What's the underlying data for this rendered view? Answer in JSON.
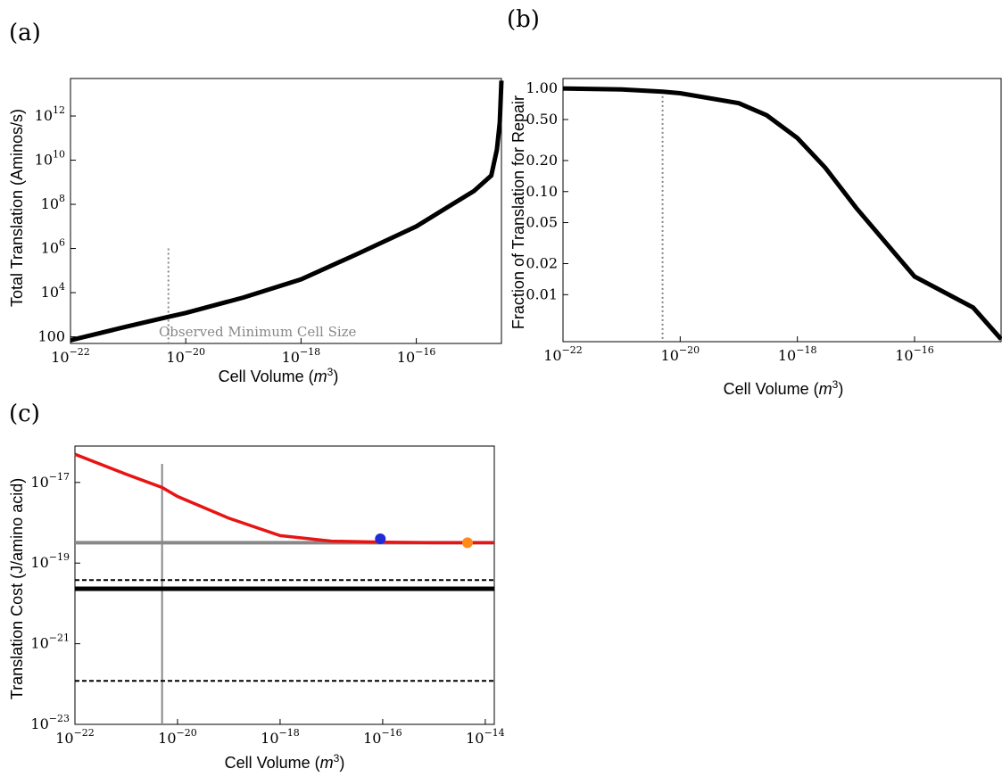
{
  "panel_labels": [
    "(a)",
    "(b)",
    "(c)"
  ],
  "colors": {
    "curve": "#000000",
    "dotted": "#888888",
    "red_curve": "#e81414",
    "gray_line": "#888888",
    "blue_point": "#1f2bd6",
    "orange_point": "#ff8a1a",
    "black_line": "#000000",
    "dashed": "#000000"
  },
  "chart_data": [
    {
      "type": "line",
      "panel": "(a)",
      "xlabel": "Cell Volume (m^3)",
      "ylabel": "Total Translation (Aminos/s)",
      "xscale": "log",
      "yscale": "log",
      "xlim": [
        1e-22,
        3e-15
      ],
      "ylim": [
        50,
        50000000000000.0
      ],
      "x_ticks": [
        -22,
        -20,
        -18,
        -16
      ],
      "y_ticks": [
        2,
        4,
        6,
        8,
        10,
        12
      ],
      "y_tick_label_first": "100",
      "annotation": "Observed Minimum Cell Size",
      "vline_x": 5e-21,
      "vline_top_y": 1000000.0,
      "series": [
        {
          "x": [
            1e-22,
            1e-21,
            5e-21,
            1e-20,
            1e-19,
            1e-18,
            1e-17,
            1e-16,
            1e-15,
            2e-15,
            2.5e-15,
            2.8e-15,
            3e-15
          ],
          "y": [
            70,
            300,
            800,
            1200,
            6000,
            40000,
            600000,
            10000000,
            400000000,
            2000000000,
            30000000000,
            500000000000,
            40000000000000
          ]
        }
      ]
    },
    {
      "type": "line",
      "panel": "(b)",
      "xlabel": "Cell Volume (m^3)",
      "ylabel": "Fraction of Translation for Repair",
      "xscale": "log",
      "yscale": "log",
      "xlim": [
        1e-22,
        3e-15
      ],
      "ylim": [
        0.0035,
        1.25
      ],
      "x_ticks": [
        -22,
        -20,
        -18,
        -16
      ],
      "y_ticks": [
        1.0,
        0.5,
        0.2,
        0.1,
        0.05,
        0.02,
        0.01
      ],
      "y_tick_labels": [
        "1.00",
        "0.50",
        "0.20",
        "0.10",
        "0.05",
        "0.02",
        "0.01"
      ],
      "vline_x": 5e-21,
      "series": [
        {
          "x": [
            1e-22,
            1e-21,
            5e-21,
            1e-20,
            1e-19,
            3e-19,
            1e-18,
            3e-18,
            1e-17,
            1e-16,
            1e-15,
            3e-15
          ],
          "y": [
            1.0,
            0.98,
            0.93,
            0.9,
            0.72,
            0.55,
            0.33,
            0.17,
            0.07,
            0.015,
            0.0075,
            0.0037
          ]
        }
      ]
    },
    {
      "type": "line",
      "panel": "(c)",
      "xlabel": "Cell Volume (m^3)",
      "ylabel": "Translation Cost (J/amino acid)",
      "xscale": "log",
      "yscale": "log",
      "xlim": [
        1e-22,
        1.5e-14
      ],
      "ylim": [
        1e-23,
        8e-17
      ],
      "x_ticks": [
        -22,
        -20,
        -18,
        -16,
        -14
      ],
      "y_ticks": [
        -23,
        -21,
        -19,
        -17
      ],
      "vline_x": 5e-21,
      "red_curve": {
        "x": [
          1e-22,
          1e-21,
          5e-21,
          1e-20,
          1e-19,
          1e-18,
          1e-17,
          1e-16,
          1e-15,
          1.5e-14
        ],
        "y": [
          5e-17,
          1.6e-17,
          7.5e-18,
          4.5e-18,
          1.3e-18,
          4.8e-19,
          3.5e-19,
          3.3e-19,
          3.2e-19,
          3.2e-19
        ]
      },
      "gray_line_y": 3.2e-19,
      "black_line_y": 2.3e-20,
      "dashed_lines_y": [
        3.8e-20,
        1.2e-22
      ],
      "points": [
        {
          "x": 9e-17,
          "y": 4e-19,
          "color": "blue"
        },
        {
          "x": 4.5e-15,
          "y": 3.2e-19,
          "color": "orange"
        }
      ]
    }
  ]
}
